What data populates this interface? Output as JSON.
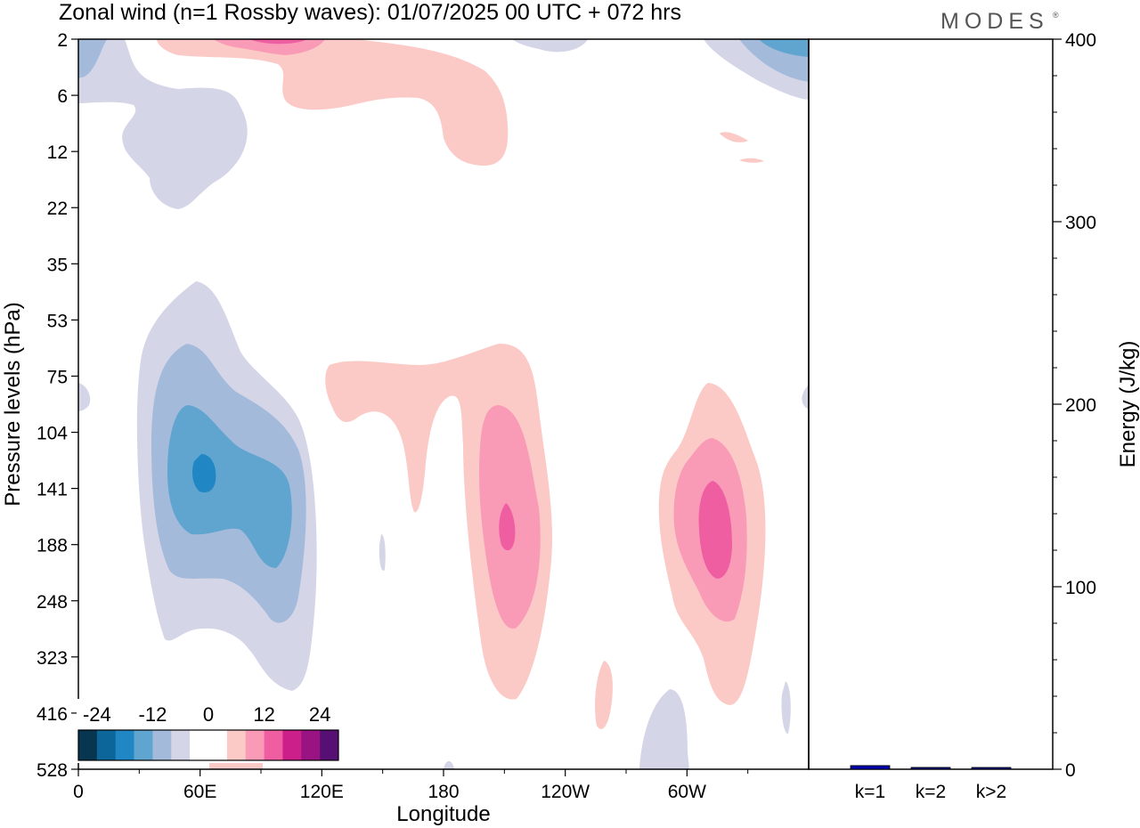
{
  "title": "Zonal wind (n=1 Rossby waves):  01/07/2025  00 UTC  + 072 hrs",
  "logo": {
    "text": "MODES",
    "mark": "®"
  },
  "chart_data": [
    {
      "type": "heatmap",
      "xlabel": "Longitude",
      "ylabel": "Pressure levels (hPa)",
      "x_ticks": [
        "0",
        "60E",
        "120E",
        "180",
        "120W",
        "60W"
      ],
      "y_ticks": [
        "2",
        "6",
        "12",
        "22",
        "35",
        "53",
        "75",
        "104",
        "141",
        "188",
        "248",
        "323",
        "416",
        "528"
      ],
      "colorbar": {
        "labels": [
          "-24",
          "-12",
          "0",
          "12",
          "24"
        ],
        "colors": [
          "#08354f",
          "#0d6699",
          "#2186c4",
          "#5fa5cf",
          "#a3badb",
          "#d5d5e8",
          "#ffffff",
          "#ffffff",
          "#fbcac6",
          "#f99bb7",
          "#ef5ea1",
          "#cc1f89",
          "#991383",
          "#560f73"
        ]
      },
      "regions": [
        {
          "level": -12,
          "lon": 60,
          "p": 150
        },
        {
          "level": -6,
          "lon": 70,
          "p": 170
        },
        {
          "level": 6,
          "lon": 210,
          "p": 160
        },
        {
          "level": 6,
          "lon": 310,
          "p": 160
        },
        {
          "level": 3,
          "lon": 150,
          "p": 5
        },
        {
          "level": -3,
          "lon": 60,
          "p": 11
        }
      ]
    },
    {
      "type": "bar",
      "ylabel": "Energy (J/kg)",
      "categories": [
        "k=1",
        "k=2",
        "k>2"
      ],
      "values": [
        2,
        1,
        0.6
      ],
      "ylim": [
        0,
        400
      ],
      "y_ticks": [
        "0",
        "100",
        "200",
        "300",
        "400"
      ],
      "colors": [
        "#0000aa",
        "#000080",
        "#000080"
      ]
    }
  ]
}
